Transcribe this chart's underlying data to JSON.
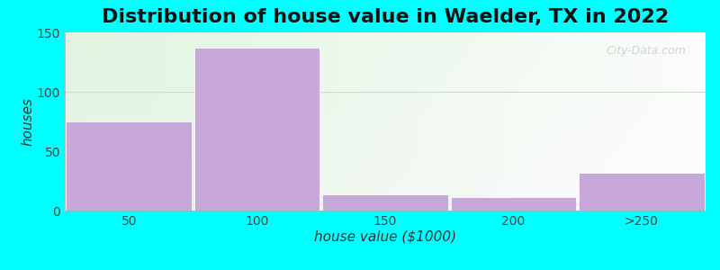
{
  "title": "Distribution of house value in Waelder, TX in 2022",
  "xlabel": "house value ($1000)",
  "ylabel": "houses",
  "categories": [
    "50",
    "100",
    "150",
    "200",
    ">250"
  ],
  "values": [
    75,
    137,
    14,
    11,
    32
  ],
  "bar_color": "#c8a8d8",
  "bar_edgecolor": "#ffffff",
  "ylim": [
    0,
    150
  ],
  "yticks": [
    0,
    50,
    100,
    150
  ],
  "background_color": "#00FFFF",
  "title_fontsize": 16,
  "label_fontsize": 11,
  "tick_fontsize": 10,
  "watermark": "City-Data.com",
  "hline_y": 100,
  "hline_color": "#ccddcc"
}
